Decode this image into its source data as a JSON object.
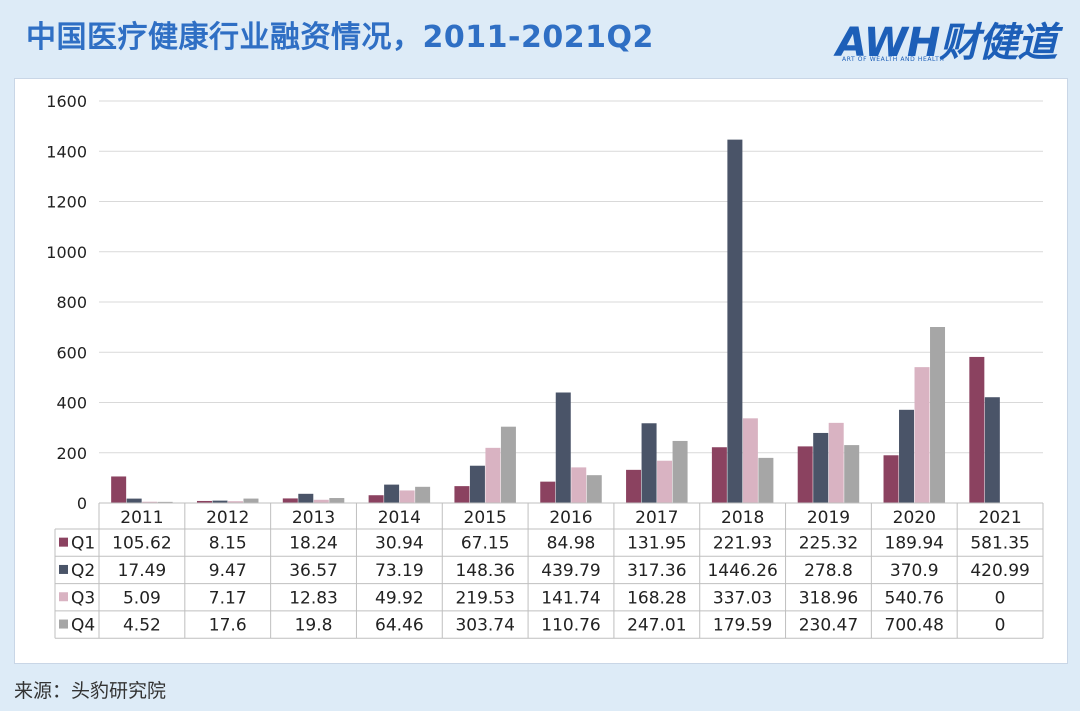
{
  "header": {
    "title": "中国医疗健康行业融资情况，2011-2021Q2",
    "logo_text": "AWH财健道",
    "logo_sub": "ART OF WEALTH AND HEALTH"
  },
  "footer": {
    "source": "来源：头豹研究院"
  },
  "chart_data": {
    "type": "bar",
    "title": "中国医疗健康行业融资情况，2011-2021Q2",
    "xlabel": "",
    "ylabel": "",
    "ylim": [
      0,
      1600
    ],
    "yticks": [
      "0",
      "200",
      "400",
      "600",
      "800",
      "1000",
      "1200",
      "1400",
      "1600"
    ],
    "grid": true,
    "legend_placement": "data-table-left",
    "categories": [
      "2011",
      "2012",
      "2013",
      "2014",
      "2015",
      "2016",
      "2017",
      "2018",
      "2019",
      "2020",
      "2021"
    ],
    "series": [
      {
        "name": "Q1",
        "color": "#8b4260",
        "values": [
          105.62,
          8.15,
          18.24,
          30.94,
          67.15,
          84.98,
          131.95,
          221.93,
          225.32,
          189.94,
          581.35
        ],
        "labels": [
          "105.62",
          "8.15",
          "18.24",
          "30.94",
          "67.15",
          "84.98",
          "131.95",
          "221.93",
          "225.32",
          "189.94",
          "581.35"
        ]
      },
      {
        "name": "Q2",
        "color": "#4a5468",
        "values": [
          17.49,
          9.47,
          36.57,
          73.19,
          148.36,
          439.79,
          317.36,
          1446.26,
          278.8,
          370.9,
          420.99
        ],
        "labels": [
          "17.49",
          "9.47",
          "36.57",
          "73.19",
          "148.36",
          "439.79",
          "317.36",
          "1446.26",
          "278.8",
          "370.9",
          "420.99"
        ]
      },
      {
        "name": "Q3",
        "color": "#d9b3c2",
        "values": [
          5.09,
          7.17,
          12.83,
          49.92,
          219.53,
          141.74,
          168.28,
          337.03,
          318.96,
          540.76,
          0
        ],
        "labels": [
          "5.09",
          "7.17",
          "12.83",
          "49.92",
          "219.53",
          "141.74",
          "168.28",
          "337.03",
          "318.96",
          "540.76",
          "0"
        ]
      },
      {
        "name": "Q4",
        "color": "#a6a6a6",
        "values": [
          4.52,
          17.6,
          19.8,
          64.46,
          303.74,
          110.76,
          247.01,
          179.59,
          230.47,
          700.48,
          0
        ],
        "labels": [
          "4.52",
          "17.6",
          "19.8",
          "64.46",
          "303.74",
          "110.76",
          "247.01",
          "179.59",
          "230.47",
          "700.48",
          "0"
        ]
      }
    ]
  }
}
